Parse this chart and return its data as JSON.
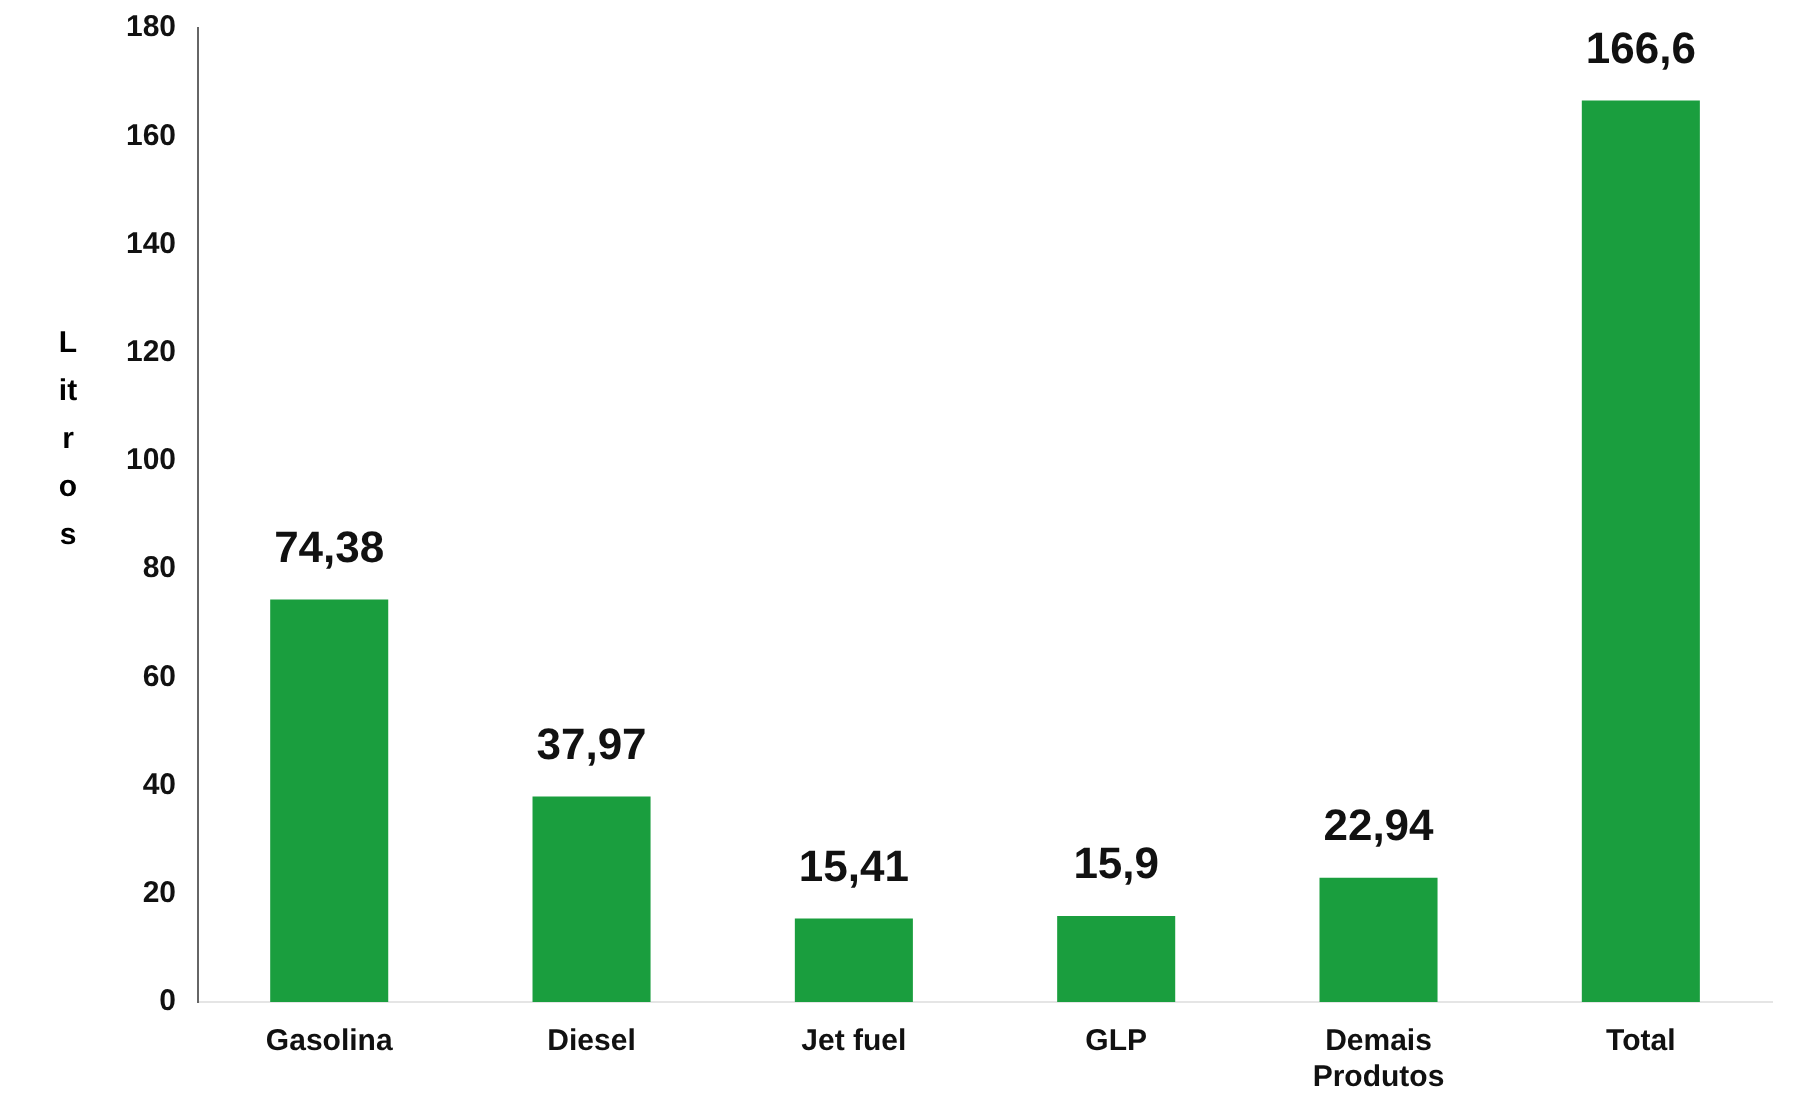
{
  "chart_data": {
    "type": "bar",
    "ylabel": "Litros",
    "categories": [
      "Gasolina",
      "Diesel",
      "Jet fuel",
      "GLP",
      "Demais Produtos",
      "Total"
    ],
    "values": [
      74.38,
      37.97,
      15.41,
      15.9,
      22.94,
      166.6
    ],
    "value_labels": [
      "74,38",
      "37,97",
      "15,41",
      "15,9",
      "22,94",
      "166,6"
    ],
    "color": "#1a9e3e",
    "ylim": [
      0,
      180
    ],
    "yticks": [
      0,
      20,
      40,
      60,
      80,
      100,
      120,
      140,
      160,
      180
    ],
    "grid": false,
    "legend": false
  }
}
